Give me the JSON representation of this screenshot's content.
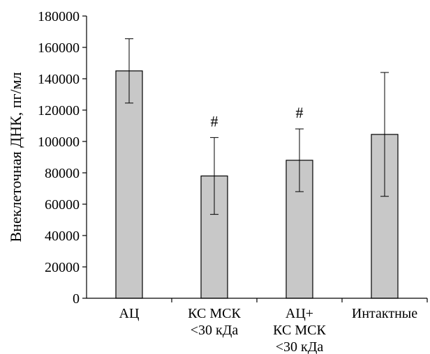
{
  "chart_data": {
    "type": "bar",
    "title": "",
    "xlabel": "",
    "ylabel": "Внеклеточная ДНК, пг/мл",
    "ylim": [
      0,
      180000
    ],
    "yticks": [
      0,
      20000,
      40000,
      60000,
      80000,
      100000,
      120000,
      140000,
      160000,
      180000
    ],
    "categories": [
      [
        "АЦ"
      ],
      [
        "КС МСК",
        "<30 кДа"
      ],
      [
        "АЦ+",
        "КС МСК",
        "<30 кДа"
      ],
      [
        "Интактные"
      ]
    ],
    "values": [
      145000,
      78000,
      88000,
      104500
    ],
    "error_low": [
      124500,
      53500,
      68000,
      65000
    ],
    "error_high": [
      165500,
      102500,
      108000,
      144000
    ],
    "annotations": [
      "",
      "#",
      "#",
      ""
    ],
    "grid": false,
    "legend": "none",
    "bar_color": "#c8c8c8"
  }
}
